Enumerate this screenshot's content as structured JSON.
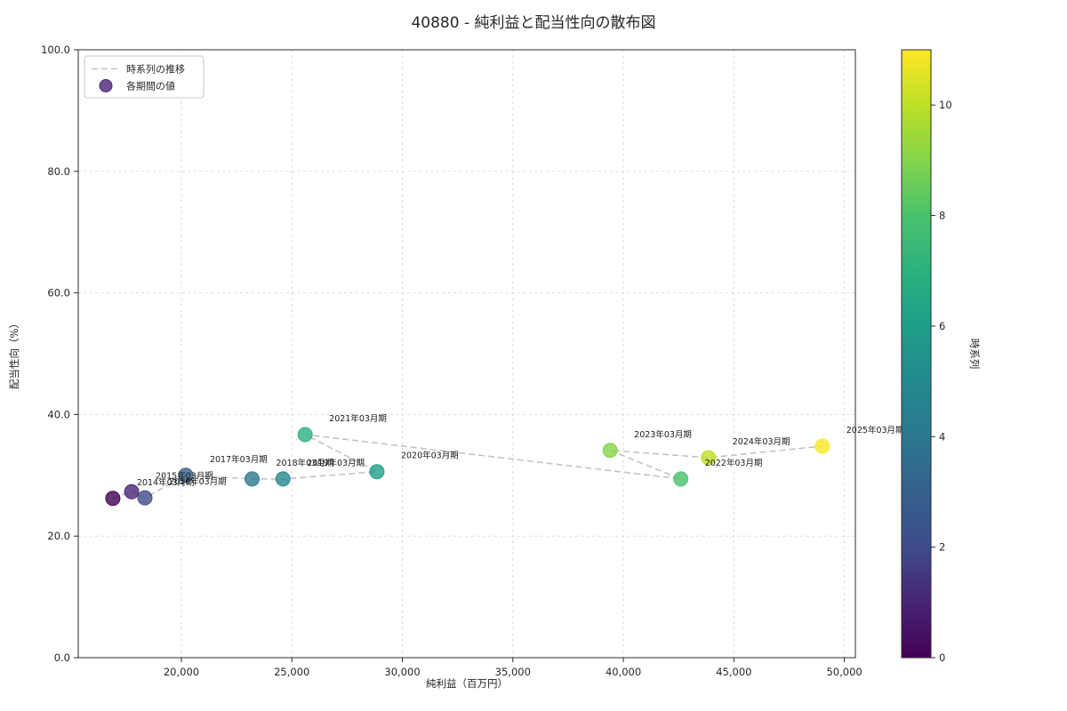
{
  "chart_data": {
    "type": "scatter",
    "title": "40880 - 純利益と配当性向の散布図",
    "xlabel": "純利益（百万円）",
    "ylabel": "配当性向（%）",
    "colorbar_label": "時系列",
    "legend": {
      "line_label": "時系列の推移",
      "marker_label": "各期間の値"
    },
    "grid": true,
    "legend_position": "upper-left",
    "xlim": [
      15334,
      50498
    ],
    "ylim": [
      0,
      100
    ],
    "xticks": [
      20000,
      25000,
      30000,
      35000,
      40000,
      45000,
      50000
    ],
    "xtick_labels": [
      "20,000",
      "25,000",
      "30,000",
      "35,000",
      "40,000",
      "45,000",
      "50,000"
    ],
    "yticks": [
      0,
      20,
      40,
      60,
      80,
      100
    ],
    "ytick_labels": [
      "0.0",
      "20.0",
      "40.0",
      "60.0",
      "80.0",
      "100.0"
    ],
    "colorbar_range": [
      0,
      11
    ],
    "colorbar_ticks": [
      0,
      2,
      4,
      6,
      8,
      10
    ],
    "colorbar_tick_labels": [
      "0",
      "2",
      "4",
      "6",
      "8",
      "10"
    ],
    "line_color": "#c3c3c3",
    "legend_marker_color": "#482475",
    "viridis_stops": [
      "#440154",
      "#482475",
      "#3e4c8a",
      "#34608d",
      "#2a788e",
      "#23898e",
      "#1f9e89",
      "#2cb17e",
      "#4ac16d",
      "#84d44b",
      "#bddf26",
      "#fde725"
    ],
    "points": [
      {
        "label": "2014年03月期",
        "x": 16900,
        "y": 26.2,
        "t": 0,
        "color": "#440154"
      },
      {
        "label": "2015年03月期",
        "x": 17750,
        "y": 27.3,
        "t": 1,
        "color": "#482475"
      },
      {
        "label": "2016年03月期",
        "x": 18350,
        "y": 26.3,
        "t": 2,
        "color": "#3e4c8a"
      },
      {
        "label": "2017年03月期",
        "x": 20200,
        "y": 30.0,
        "t": 3,
        "color": "#34608d"
      },
      {
        "label": "2018年03月期",
        "x": 23200,
        "y": 29.4,
        "t": 4,
        "color": "#2a788e"
      },
      {
        "label": "2019年03月期",
        "x": 24600,
        "y": 29.4,
        "t": 5,
        "color": "#23898e"
      },
      {
        "label": "2020年03月期",
        "x": 28850,
        "y": 30.6,
        "t": 6,
        "color": "#1f9e89"
      },
      {
        "label": "2021年03月期",
        "x": 25600,
        "y": 36.7,
        "t": 7,
        "color": "#2cb17e"
      },
      {
        "label": "2022年03月期",
        "x": 42600,
        "y": 29.4,
        "t": 8,
        "color": "#4ac16d"
      },
      {
        "label": "2023年03月期",
        "x": 39400,
        "y": 34.1,
        "t": 9,
        "color": "#84d44b"
      },
      {
        "label": "2024年03月期",
        "x": 43850,
        "y": 32.9,
        "t": 10,
        "color": "#bddf26"
      },
      {
        "label": "2025年03月期",
        "x": 49000,
        "y": 34.8,
        "t": 11,
        "color": "#fde725"
      }
    ]
  }
}
